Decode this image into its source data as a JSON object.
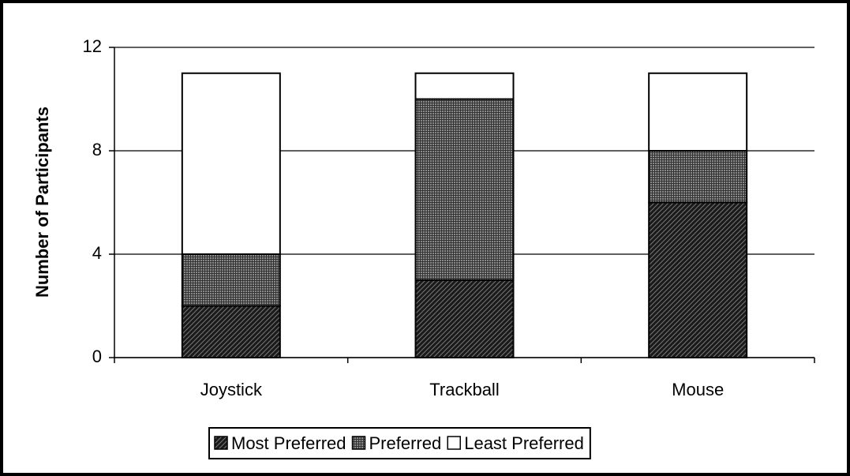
{
  "chart_data": {
    "type": "stacked_bar",
    "ylabel": "Number of Participants",
    "categories": [
      "Joystick",
      "Trackball",
      "Mouse"
    ],
    "series": [
      {
        "name": "Most Preferred",
        "color": "#1a1a1a",
        "values": [
          2,
          3,
          6
        ]
      },
      {
        "name": "Preferred",
        "color": "#8a8a8a",
        "values": [
          2,
          7,
          2
        ]
      },
      {
        "name": "Least Preferred",
        "color": "#ffffff",
        "values": [
          7,
          1,
          3
        ]
      }
    ],
    "ylim": [
      0,
      12
    ],
    "yticks": [
      0,
      4,
      8,
      12
    ],
    "grid": true,
    "legend": "bottom"
  }
}
